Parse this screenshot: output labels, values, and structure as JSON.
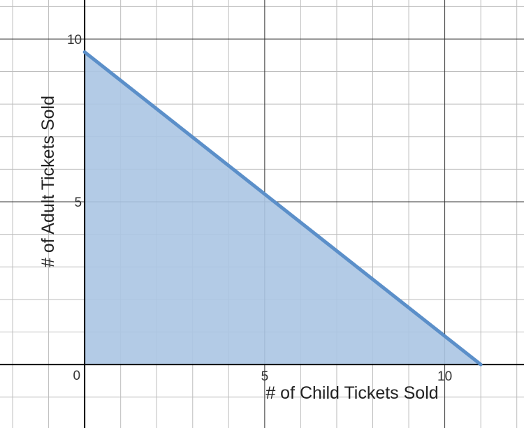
{
  "chart_data": {
    "type": "area",
    "title": "",
    "xlabel": "# of Child Tickets Sold",
    "ylabel": "# of Adult Tickets Sold",
    "xlim": [
      -2.35,
      12.2
    ],
    "ylim": [
      -1.95,
      11.2
    ],
    "minor_grid_step": 1,
    "major_grid_step": 5,
    "grid": true,
    "x_ticks": [
      {
        "value": 5,
        "label": "5"
      },
      {
        "value": 10,
        "label": "10"
      }
    ],
    "y_ticks": [
      {
        "value": 5,
        "label": "5"
      },
      {
        "value": 10,
        "label": "10"
      }
    ],
    "origin_label": "0",
    "series": [
      {
        "x": [
          0,
          11.0
        ],
        "y": [
          9.6,
          0
        ],
        "color": "#5b8fc9",
        "fill": "#abc5e3",
        "shaded_region": "below line, x ≥ 0, y ≥ 0"
      }
    ]
  }
}
